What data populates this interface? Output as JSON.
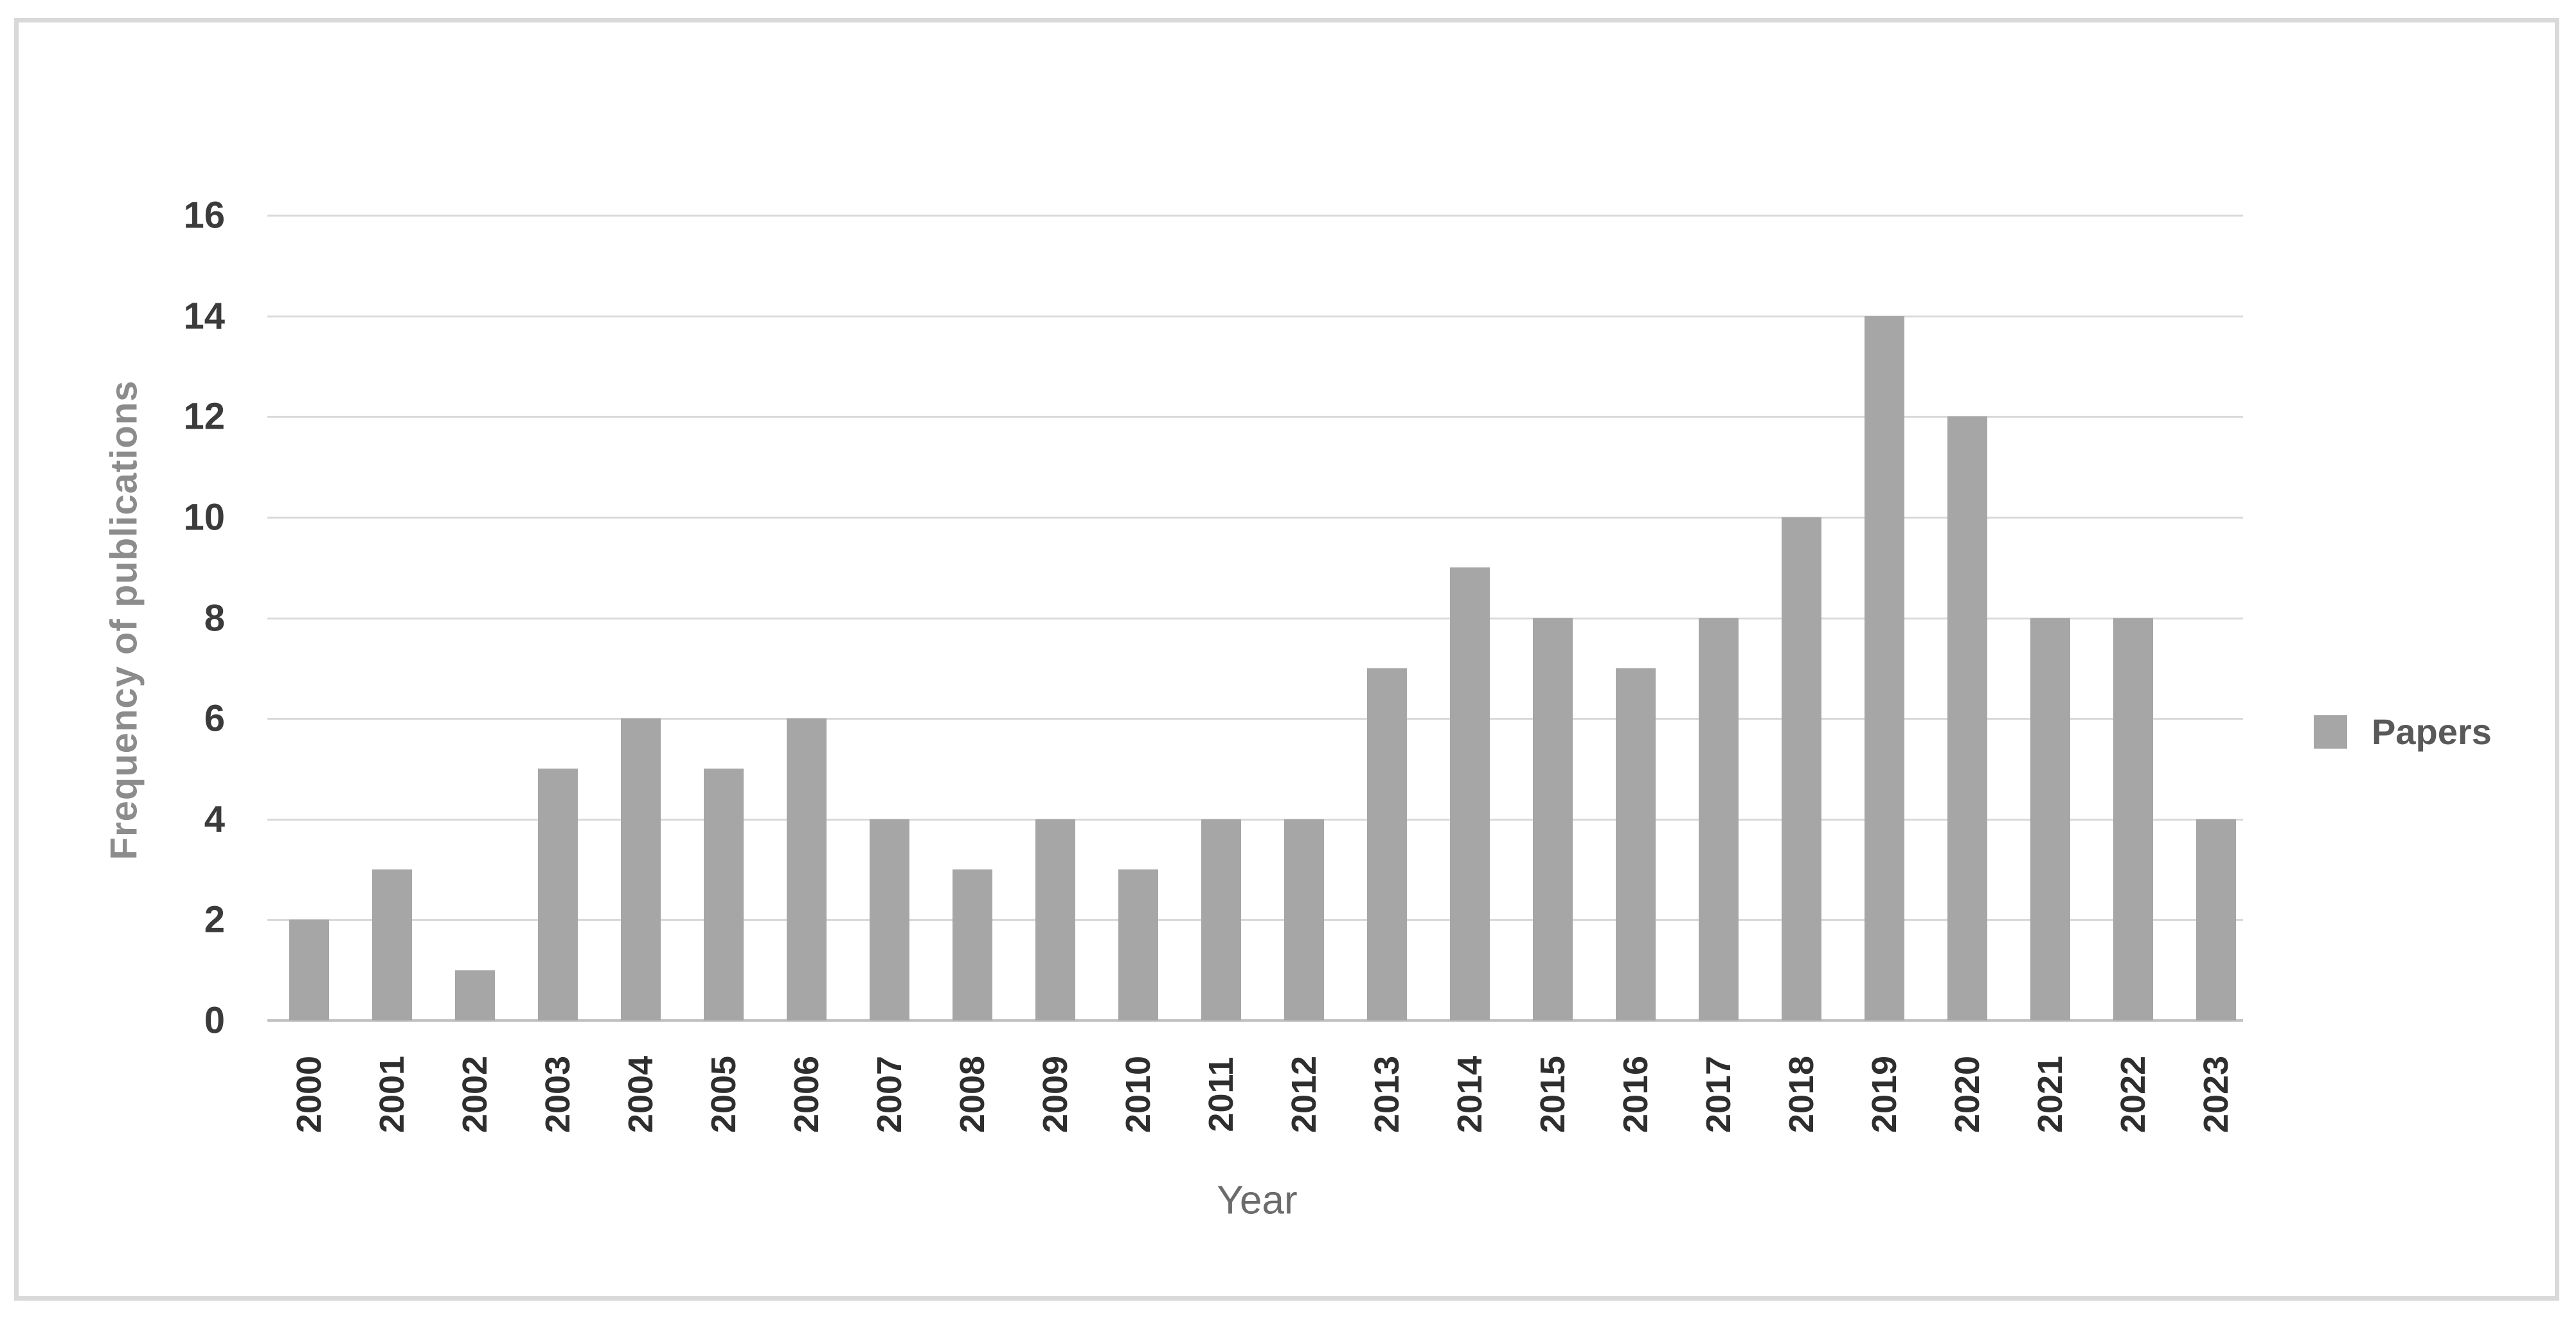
{
  "chart_data": {
    "type": "bar",
    "title": "",
    "xlabel": "Year",
    "ylabel": "Frequency of publications",
    "legend": {
      "label": "Papers",
      "position": "right-middle",
      "swatch_color": "#a6a6a6"
    },
    "categories": [
      "2000",
      "2001",
      "2002",
      "2003",
      "2004",
      "2005",
      "2006",
      "2007",
      "2008",
      "2009",
      "2010",
      "2011",
      "2012",
      "2013",
      "2014",
      "2015",
      "2016",
      "2017",
      "2018",
      "2019",
      "2020",
      "2021",
      "2022",
      "2023"
    ],
    "series": [
      {
        "name": "Papers",
        "values": [
          2,
          3,
          1,
          5,
          6,
          5,
          6,
          4,
          3,
          4,
          3,
          4,
          4,
          7,
          9,
          8,
          7,
          8,
          10,
          14,
          12,
          8,
          8,
          4
        ]
      }
    ],
    "ylim": [
      0,
      16
    ],
    "yticks": [
      0,
      2,
      4,
      6,
      8,
      10,
      12,
      14,
      16
    ],
    "grid": "horizontal",
    "colors": {
      "bar": "#a6a6a6",
      "gridline": "#d9d9d9",
      "axis_line": "#c2c2c2",
      "y_tick_label": "#3b3b3b",
      "x_tick_label": "#2e2e2e",
      "y_axis_title": "#8c8c8c",
      "x_axis_title": "#6b6b6b",
      "legend_text": "#595959",
      "frame_border": "#d9d9d9",
      "background": "#ffffff"
    }
  }
}
